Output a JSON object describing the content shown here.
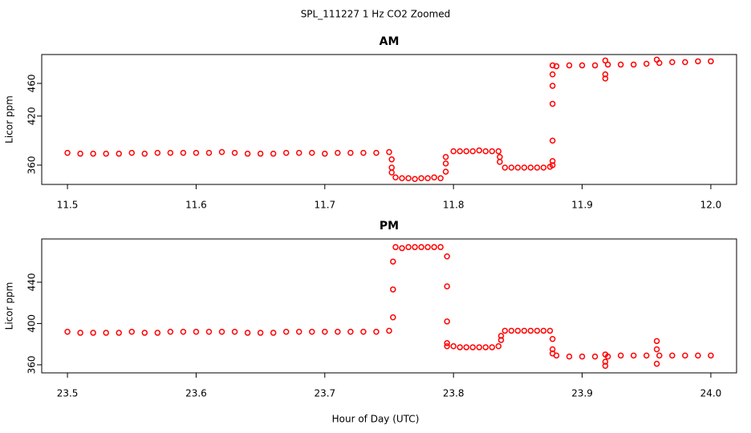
{
  "title": "SPL_111227  1 Hz CO2 Zoomed",
  "x_label": "Hour of Day (UTC)",
  "chart_data": [
    {
      "type": "scatter",
      "title": "AM",
      "y_label": "Licor ppm",
      "color": "#ff0000",
      "xlim": [
        11.48,
        12.02
      ],
      "ylim": [
        336.4,
        495.3
      ],
      "xticks": [
        11.5,
        11.6,
        11.7,
        11.8,
        11.9,
        {
          "value": 12,
          "label": "12.0"
        }
      ],
      "yticks": [
        360,
        420,
        460
      ],
      "x": [
        11.5,
        11.51,
        11.52,
        11.53,
        11.54,
        11.55,
        11.56,
        11.57,
        11.58,
        11.59,
        11.6,
        11.61,
        11.62,
        11.63,
        11.64,
        11.65,
        11.66,
        11.67,
        11.68,
        11.69,
        11.7,
        11.71,
        11.72,
        11.73,
        11.74,
        11.75,
        11.752,
        11.752,
        11.752,
        11.755,
        11.76,
        11.765,
        11.77,
        11.775,
        11.78,
        11.785,
        11.79,
        11.794,
        11.794,
        11.794,
        11.8,
        11.805,
        11.81,
        11.815,
        11.82,
        11.825,
        11.83,
        11.835,
        11.836,
        11.836,
        11.84,
        11.845,
        11.85,
        11.855,
        11.86,
        11.865,
        11.87,
        11.875,
        11.877,
        11.877,
        11.877,
        11.877,
        11.877,
        11.877,
        11.877,
        11.88,
        11.89,
        11.9,
        11.91,
        11.92,
        11.93,
        11.94,
        11.95,
        11.96,
        11.97,
        11.98,
        11.99,
        12.0,
        11.918,
        11.918,
        11.918,
        11.958
      ],
      "values": [
        375,
        374,
        374,
        374,
        374,
        375,
        374,
        375,
        375,
        375,
        375,
        375,
        376,
        375,
        374,
        374,
        374,
        375,
        375,
        375,
        374,
        375,
        375,
        375,
        375,
        376,
        367,
        357,
        351,
        345,
        344,
        344,
        343,
        344,
        344,
        345,
        344,
        352,
        362,
        370,
        377,
        377,
        377,
        377,
        378,
        377,
        377,
        377,
        370,
        364,
        357,
        357,
        357,
        357,
        357,
        357,
        357,
        358,
        360,
        365,
        390,
        435,
        457,
        471,
        482,
        481,
        482,
        482,
        482,
        483,
        483,
        483,
        484,
        485,
        486,
        486,
        487,
        487,
        488,
        471,
        466,
        489
      ]
    },
    {
      "type": "scatter",
      "title": "PM",
      "y_label": "Licor ppm",
      "color": "#ff0000",
      "xlim": [
        23.48,
        24.02
      ],
      "ylim": [
        352.2,
        481.9
      ],
      "xticks": [
        23.5,
        23.6,
        23.7,
        23.8,
        23.9,
        {
          "value": 24,
          "label": "24.0"
        }
      ],
      "yticks": [
        360,
        400,
        440
      ],
      "x": [
        23.5,
        23.51,
        23.52,
        23.53,
        23.54,
        23.55,
        23.56,
        23.57,
        23.58,
        23.59,
        23.6,
        23.61,
        23.62,
        23.63,
        23.64,
        23.65,
        23.66,
        23.67,
        23.68,
        23.69,
        23.7,
        23.71,
        23.72,
        23.73,
        23.74,
        23.75,
        23.753,
        23.753,
        23.753,
        23.755,
        23.76,
        23.765,
        23.77,
        23.775,
        23.78,
        23.785,
        23.79,
        23.795,
        23.795,
        23.795,
        23.795,
        23.795,
        23.8,
        23.805,
        23.81,
        23.815,
        23.82,
        23.825,
        23.83,
        23.835,
        23.837,
        23.837,
        23.84,
        23.845,
        23.85,
        23.855,
        23.86,
        23.865,
        23.87,
        23.875,
        23.877,
        23.877,
        23.877,
        23.88,
        23.89,
        23.9,
        23.91,
        23.92,
        23.93,
        23.94,
        23.95,
        23.96,
        23.97,
        23.98,
        23.99,
        24.0,
        23.918,
        23.918,
        23.918,
        23.958,
        23.958,
        23.958
      ],
      "values": [
        392,
        391,
        391,
        391,
        391,
        392,
        391,
        391,
        392,
        392,
        392,
        392,
        392,
        392,
        391,
        391,
        391,
        392,
        392,
        392,
        392,
        392,
        392,
        392,
        392,
        393,
        406,
        433,
        460,
        474,
        473,
        474,
        474,
        474,
        474,
        474,
        474,
        465,
        436,
        402,
        381,
        378,
        378,
        377,
        377,
        377,
        377,
        377,
        377,
        378,
        384,
        388,
        393,
        393,
        393,
        393,
        393,
        393,
        393,
        393,
        385,
        375,
        371,
        369,
        368,
        368,
        368,
        368,
        369,
        369,
        369,
        369,
        369,
        369,
        369,
        369,
        359,
        370,
        363,
        361,
        375,
        383
      ]
    }
  ]
}
